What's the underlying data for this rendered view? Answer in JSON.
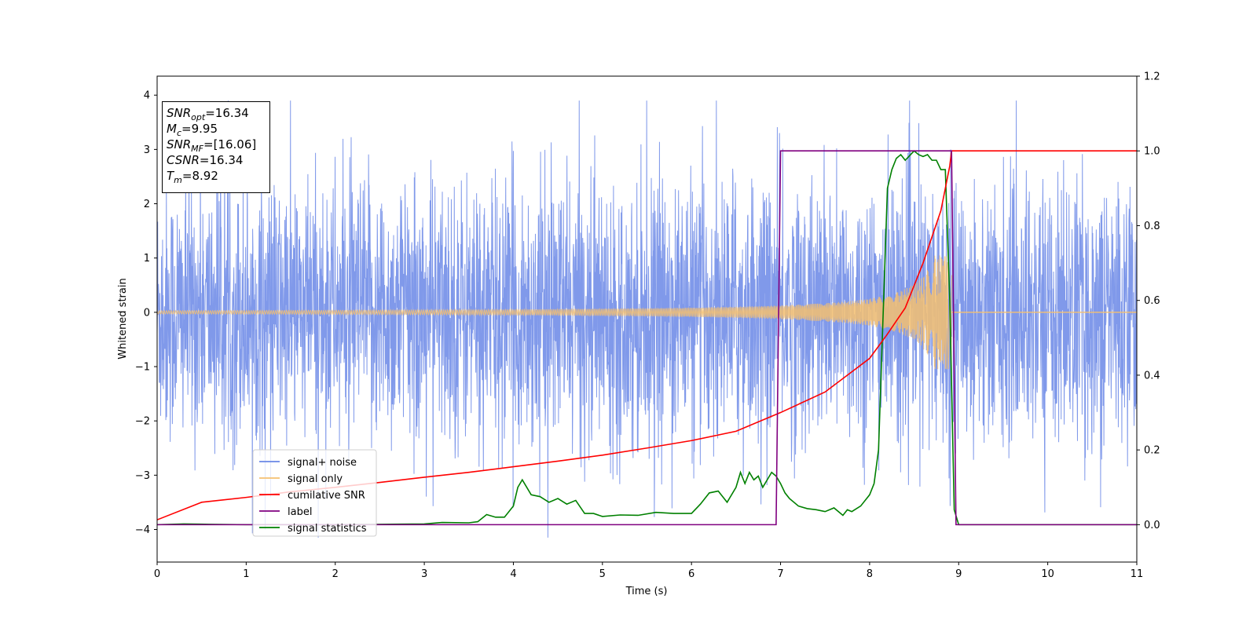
{
  "chart_data": {
    "type": "line",
    "xlabel": "Time (s)",
    "ylabel": "Whitened strain",
    "xlim": [
      0,
      11
    ],
    "ylim_left": [
      -4.6,
      4.35
    ],
    "ylim_right": [
      -0.1,
      1.2
    ],
    "x_ticks": [
      "0",
      "1",
      "2",
      "3",
      "4",
      "5",
      "6",
      "7",
      "8",
      "9",
      "10",
      "11"
    ],
    "y_ticks_left": [
      "−4",
      "−3",
      "−2",
      "−1",
      "0",
      "1",
      "2",
      "3",
      "4"
    ],
    "y_ticks_right": [
      "0.0",
      "0.2",
      "0.4",
      "0.6",
      "0.8",
      "1.0",
      "1.2"
    ],
    "annotation": [
      {
        "sym": "SNR",
        "sub": "opt",
        "rest": "=16.34"
      },
      {
        "sym": "M",
        "sub": "c",
        "rest": "=9.95"
      },
      {
        "sym": "SNR",
        "sub": "MF",
        "rest": "=[16.06]"
      },
      {
        "sym": "CSNR",
        "sub": "",
        "rest": "=16.34"
      },
      {
        "sym": "T",
        "sub": "m",
        "rest": "=8.92"
      }
    ],
    "legend": {
      "placement": "lower-left",
      "entries": [
        {
          "label": "signal+ noise",
          "color": "#6a87e6"
        },
        {
          "label": "signal only",
          "color": "#f5c070"
        },
        {
          "label": "cumilative SNR",
          "color": "#ff0000"
        },
        {
          "label": "label",
          "color": "#800080"
        },
        {
          "label": "signal statistics",
          "color": "#008000"
        }
      ]
    },
    "series": [
      {
        "name": "signal+ noise",
        "axis": "left",
        "color": "#6a87e6",
        "description_values": {
          "typical_amplitude": 1.6,
          "peak_max": 3.9,
          "peak_min": -4.15,
          "x_range": [
            0,
            11
          ]
        }
      },
      {
        "name": "signal only",
        "axis": "left",
        "color": "#f5c070",
        "chirp": {
          "start_amplitude": 0.03,
          "max_amplitude": 1.05,
          "end_time": 8.92,
          "after_end_value": 0.0
        }
      },
      {
        "name": "cumilative SNR",
        "axis": "right",
        "color": "#ff0000",
        "x": [
          0,
          0.5,
          1,
          1.5,
          2,
          2.5,
          3,
          3.5,
          4,
          4.5,
          5,
          5.5,
          6,
          6.5,
          7,
          7.5,
          8,
          8.2,
          8.4,
          8.6,
          8.7,
          8.8,
          8.85,
          8.9,
          8.92,
          9.0,
          11
        ],
        "y": [
          0.013,
          0.06,
          0.073,
          0.088,
          0.1,
          0.113,
          0.127,
          0.14,
          0.155,
          0.17,
          0.186,
          0.205,
          0.225,
          0.25,
          0.3,
          0.355,
          0.445,
          0.51,
          0.58,
          0.7,
          0.77,
          0.84,
          0.9,
          0.96,
          1.0,
          1.0,
          1.0
        ]
      },
      {
        "name": "label",
        "axis": "right",
        "color": "#800080",
        "x": [
          0,
          6.95,
          7.0,
          8.92,
          8.97,
          11
        ],
        "y": [
          0.0,
          0.0,
          1.0,
          1.0,
          0.0,
          0.0
        ]
      },
      {
        "name": "signal statistics",
        "axis": "right",
        "color": "#008000",
        "x": [
          0,
          0.3,
          0.6,
          1,
          2,
          2.5,
          3,
          3.2,
          3.5,
          3.6,
          3.7,
          3.8,
          3.9,
          4.0,
          4.05,
          4.1,
          4.2,
          4.3,
          4.4,
          4.5,
          4.6,
          4.7,
          4.8,
          4.9,
          5.0,
          5.2,
          5.4,
          5.6,
          5.8,
          6.0,
          6.1,
          6.2,
          6.3,
          6.4,
          6.5,
          6.55,
          6.6,
          6.65,
          6.7,
          6.75,
          6.8,
          6.9,
          6.95,
          7.0,
          7.05,
          7.1,
          7.2,
          7.3,
          7.4,
          7.5,
          7.6,
          7.7,
          7.75,
          7.8,
          7.9,
          8.0,
          8.05,
          8.1,
          8.15,
          8.2,
          8.25,
          8.3,
          8.35,
          8.4,
          8.5,
          8.55,
          8.6,
          8.65,
          8.7,
          8.75,
          8.8,
          8.85,
          8.9,
          8.95,
          9.0,
          11
        ],
        "y": [
          0.0,
          0.002,
          0.001,
          0.0,
          0.0,
          0.001,
          0.002,
          0.006,
          0.005,
          0.008,
          0.027,
          0.02,
          0.02,
          0.05,
          0.1,
          0.12,
          0.08,
          0.075,
          0.06,
          0.07,
          0.055,
          0.065,
          0.03,
          0.03,
          0.022,
          0.026,
          0.025,
          0.033,
          0.03,
          0.03,
          0.055,
          0.085,
          0.09,
          0.06,
          0.1,
          0.14,
          0.11,
          0.14,
          0.12,
          0.13,
          0.1,
          0.14,
          0.13,
          0.11,
          0.085,
          0.07,
          0.05,
          0.043,
          0.04,
          0.035,
          0.045,
          0.025,
          0.04,
          0.035,
          0.05,
          0.08,
          0.11,
          0.2,
          0.55,
          0.9,
          0.95,
          0.98,
          0.99,
          0.975,
          1.0,
          0.99,
          0.985,
          0.99,
          0.975,
          0.975,
          0.95,
          0.95,
          0.6,
          0.04,
          0.0,
          0.0
        ]
      }
    ]
  }
}
